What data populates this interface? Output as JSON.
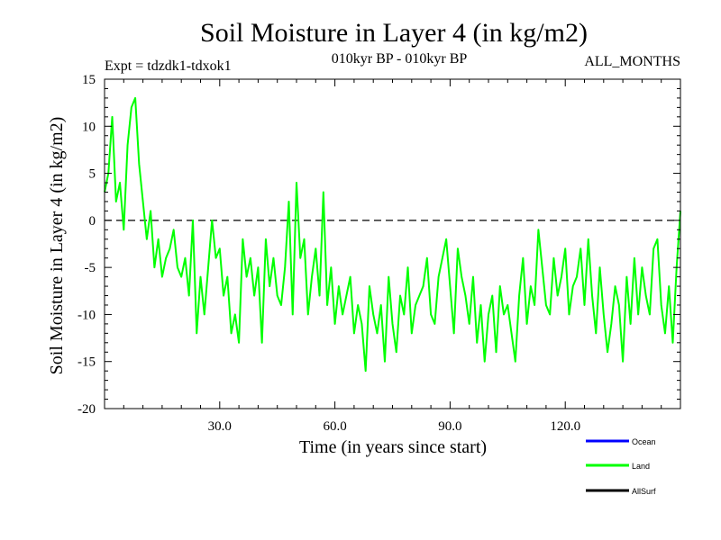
{
  "chart_data": {
    "type": "line",
    "title": "Soil Moisture in Layer 4 (in kg/m2)",
    "subtitle": "010kyr BP - 010kyr BP",
    "experiment": "Expt = tdzdk1-tdxok1",
    "period": "ALL_MONTHS",
    "xlabel": "Time (in years since start)",
    "ylabel": "Soil Moisture in Layer 4 (in kg/m2)",
    "xlim": [
      0,
      150
    ],
    "ylim": [
      -20,
      15
    ],
    "x_ticks": [
      30,
      60,
      90,
      120
    ],
    "x_tick_labels": [
      "30.0",
      "60.0",
      "90.0",
      "120.0"
    ],
    "y_ticks": [
      -20,
      -15,
      -10,
      -5,
      0,
      5,
      10,
      15
    ],
    "y_tick_labels": [
      "-20",
      "-15",
      "-10",
      "-5",
      "0",
      "5",
      "10",
      "15"
    ],
    "reference_line": {
      "y": 0,
      "style": "dashed"
    },
    "grid": false,
    "legend_position": "bottom-right",
    "series": [
      {
        "name": "Ocean",
        "legend_label": "Ocean",
        "color": "#0000ff",
        "x": [],
        "values": []
      },
      {
        "name": "Land",
        "legend_label": "Land",
        "color": "#00ff00",
        "x": [
          0,
          1,
          2,
          3,
          4,
          5,
          6,
          7,
          8,
          9,
          10,
          11,
          12,
          13,
          14,
          15,
          16,
          17,
          18,
          19,
          20,
          21,
          22,
          23,
          24,
          25,
          26,
          27,
          28,
          29,
          30,
          31,
          32,
          33,
          34,
          35,
          36,
          37,
          38,
          39,
          40,
          41,
          42,
          43,
          44,
          45,
          46,
          47,
          48,
          49,
          50,
          51,
          52,
          53,
          54,
          55,
          56,
          57,
          58,
          59,
          60,
          61,
          62,
          63,
          64,
          65,
          66,
          67,
          68,
          69,
          70,
          71,
          72,
          73,
          74,
          75,
          76,
          77,
          78,
          79,
          80,
          81,
          82,
          83,
          84,
          85,
          86,
          87,
          88,
          89,
          90,
          91,
          92,
          93,
          94,
          95,
          96,
          97,
          98,
          99,
          100,
          101,
          102,
          103,
          104,
          105,
          106,
          107,
          108,
          109,
          110,
          111,
          112,
          113,
          114,
          115,
          116,
          117,
          118,
          119,
          120,
          121,
          122,
          123,
          124,
          125,
          126,
          127,
          128,
          129,
          130,
          131,
          132,
          133,
          134,
          135,
          136,
          137,
          138,
          139,
          140,
          141,
          142,
          143,
          144,
          145,
          146,
          147,
          148,
          149,
          150
        ],
        "values": [
          3,
          5,
          11,
          2,
          4,
          -1,
          8,
          12,
          13,
          6,
          2,
          -2,
          1,
          -5,
          -2,
          -6,
          -4,
          -3,
          -1,
          -5,
          -6,
          -4,
          -8,
          0,
          -12,
          -6,
          -10,
          -5,
          0,
          -4,
          -3,
          -8,
          -6,
          -12,
          -10,
          -13,
          -2,
          -6,
          -4,
          -8,
          -5,
          -13,
          -2,
          -7,
          -4,
          -8,
          -9,
          -5,
          2,
          -10,
          4,
          -4,
          -2,
          -10,
          -6,
          -3,
          -8,
          3,
          -9,
          -5,
          -11,
          -7,
          -10,
          -8,
          -6,
          -12,
          -9,
          -11,
          -16,
          -7,
          -10,
          -12,
          -9,
          -15,
          -6,
          -11,
          -14,
          -8,
          -10,
          -5,
          -12,
          -9,
          -8,
          -7,
          -4,
          -10,
          -11,
          -6,
          -4,
          -2,
          -7,
          -12,
          -3,
          -6,
          -8,
          -11,
          -6,
          -13,
          -9,
          -15,
          -10,
          -8,
          -14,
          -7,
          -10,
          -9,
          -12,
          -15,
          -8,
          -4,
          -11,
          -7,
          -9,
          -1,
          -5,
          -9,
          -10,
          -4,
          -8,
          -6,
          -3,
          -10,
          -7,
          -6,
          -3,
          -9,
          -2,
          -8,
          -12,
          -5,
          -10,
          -14,
          -11,
          -7,
          -9,
          -15,
          -6,
          -11,
          -4,
          -10,
          -5,
          -8,
          -10,
          -3,
          -2,
          -9,
          -12,
          -7,
          -13,
          -5,
          1
        ]
      },
      {
        "name": "AllSurf",
        "legend_label": "AllSurf",
        "color": "#000000",
        "x": [],
        "values": []
      }
    ]
  }
}
